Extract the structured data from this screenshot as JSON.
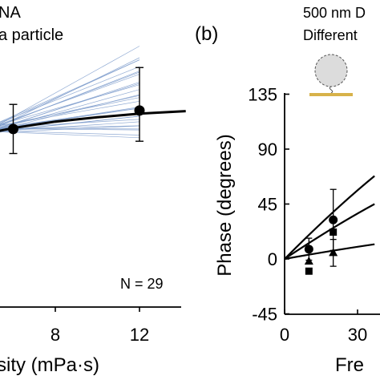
{
  "chart_data": [
    {
      "type": "scatter",
      "panel_label": "",
      "annotations": [
        "NA",
        "a particle"
      ],
      "xlabel": "sity (mPa·s)",
      "ylabel": "",
      "x_ticks": [
        "8",
        "12"
      ],
      "xlim": [
        4.7,
        14.2
      ],
      "ylim": [
        0,
        1
      ],
      "n_label": "N = 29",
      "points": [
        {
          "x": 6,
          "y": 0.58,
          "err_low": 0.5,
          "err_high": 0.66
        },
        {
          "x": 12,
          "y": 0.64,
          "err_low": 0.54,
          "err_high": 0.78
        }
      ],
      "fit_line": {
        "x": [
          4.7,
          6,
          8,
          10,
          12,
          14.2
        ],
        "y": [
          0.565,
          0.583,
          0.604,
          0.618,
          0.63,
          0.638
        ]
      },
      "ensemble_count": 29,
      "ensemble_color": "#7d9ccc",
      "grid": false
    },
    {
      "type": "scatter",
      "panel_label": "(b)",
      "annotations": [
        "500 nm D",
        "Different"
      ],
      "xlabel": "Fre",
      "ylabel": "Phase (degrees)",
      "y_ticks": [
        "135",
        "90",
        "45",
        "0",
        "-45"
      ],
      "x_ticks": [
        "0",
        "30"
      ],
      "xlim": [
        0,
        37
      ],
      "ylim": [
        -45,
        135
      ],
      "series": [
        {
          "marker": "circle",
          "points": [
            {
              "x": 10,
              "y": 8,
              "err": 9
            },
            {
              "x": 20,
              "y": 32,
              "err": 25
            }
          ],
          "fit": [
            [
              0,
              0
            ],
            [
              37,
              68
            ]
          ]
        },
        {
          "marker": "square",
          "points": [
            {
              "x": 10,
              "y": -10,
              "err": 0
            },
            {
              "x": 20,
              "y": 22,
              "err": 0
            }
          ],
          "fit": [
            [
              0,
              0
            ],
            [
              37,
              45
            ]
          ]
        },
        {
          "marker": "triangle",
          "points": [
            {
              "x": 10,
              "y": -2,
              "err": 0
            },
            {
              "x": 20,
              "y": 5,
              "err": 11
            }
          ],
          "fit": [
            [
              0,
              0
            ],
            [
              37,
              12
            ]
          ]
        }
      ],
      "grid": false
    }
  ]
}
